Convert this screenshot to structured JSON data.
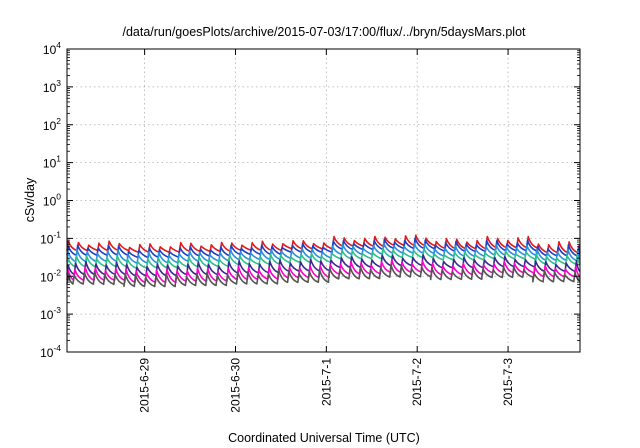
{
  "chart_data": {
    "type": "line",
    "title": "/data/run/goesPlots/archive/2015-07-03/17:00/flux/../bryn/5daysMars.plot",
    "xlabel": "Coordinated Universal Time (UTC)",
    "ylabel": "cSv/day",
    "y_scale": "log",
    "ylim": [
      0.0001,
      10000
    ],
    "y_ticks": [
      {
        "base": "10",
        "exp": "-4"
      },
      {
        "base": "10",
        "exp": "-3"
      },
      {
        "base": "10",
        "exp": "-2"
      },
      {
        "base": "10",
        "exp": "-1"
      },
      {
        "base": "10",
        "exp": "0"
      },
      {
        "base": "10",
        "exp": "1"
      },
      {
        "base": "10",
        "exp": "2"
      },
      {
        "base": "10",
        "exp": "3"
      },
      {
        "base": "10",
        "exp": "4"
      }
    ],
    "xlim": [
      "2015-06-28 03:30",
      "2015-07-03 19:00"
    ],
    "x_ticks": [
      "2015-6-29",
      "2015-6-30",
      "2015-7-1",
      "2015-7-2",
      "2015-7-3"
    ],
    "grid": true,
    "sawtooth_period_hours": 2.7,
    "series": [
      {
        "color": "#e31a1c",
        "values": [
          0.075,
          0.065,
          0.07,
          0.075,
          0.08,
          0.1,
          0.11,
          0.09,
          0.1,
          0.075
        ],
        "drop_to": [
          0.045,
          0.04,
          0.042,
          0.045,
          0.05,
          0.06,
          0.065,
          0.055,
          0.06,
          0.045
        ]
      },
      {
        "color": "#1f3fbf",
        "values": [
          0.06,
          0.05,
          0.055,
          0.06,
          0.065,
          0.08,
          0.09,
          0.075,
          0.08,
          0.06
        ],
        "drop_to": [
          0.035,
          0.03,
          0.032,
          0.035,
          0.04,
          0.048,
          0.052,
          0.045,
          0.048,
          0.036
        ]
      },
      {
        "color": "#2a8fe0",
        "values": [
          0.045,
          0.04,
          0.042,
          0.046,
          0.05,
          0.062,
          0.068,
          0.058,
          0.062,
          0.047
        ],
        "drop_to": [
          0.025,
          0.022,
          0.024,
          0.026,
          0.028,
          0.035,
          0.038,
          0.032,
          0.035,
          0.026
        ]
      },
      {
        "color": "#2fbf8f",
        "values": [
          0.032,
          0.028,
          0.03,
          0.033,
          0.036,
          0.044,
          0.048,
          0.041,
          0.044,
          0.034
        ],
        "drop_to": [
          0.019,
          0.017,
          0.018,
          0.02,
          0.022,
          0.027,
          0.029,
          0.025,
          0.027,
          0.02
        ]
      },
      {
        "color": "#3a2a8a",
        "values": [
          0.022,
          0.019,
          0.021,
          0.023,
          0.025,
          0.03,
          0.033,
          0.028,
          0.03,
          0.023
        ],
        "drop_to": [
          0.012,
          0.011,
          0.0115,
          0.0125,
          0.0135,
          0.0165,
          0.018,
          0.0155,
          0.0165,
          0.0125
        ]
      },
      {
        "color": "#ff00cc",
        "values": [
          0.016,
          0.014,
          0.015,
          0.0165,
          0.018,
          0.022,
          0.024,
          0.02,
          0.022,
          0.017
        ],
        "drop_to": [
          0.0085,
          0.0075,
          0.008,
          0.0088,
          0.0095,
          0.0115,
          0.0125,
          0.0105,
          0.0115,
          0.009
        ]
      },
      {
        "color": "#555555",
        "values": [
          0.012,
          0.0105,
          0.0112,
          0.0122,
          0.0135,
          0.0165,
          0.018,
          0.015,
          0.0165,
          0.0125
        ],
        "drop_to": [
          0.0065,
          0.0058,
          0.0062,
          0.0068,
          0.0074,
          0.009,
          0.0098,
          0.0082,
          0.009,
          0.0068
        ]
      }
    ]
  }
}
